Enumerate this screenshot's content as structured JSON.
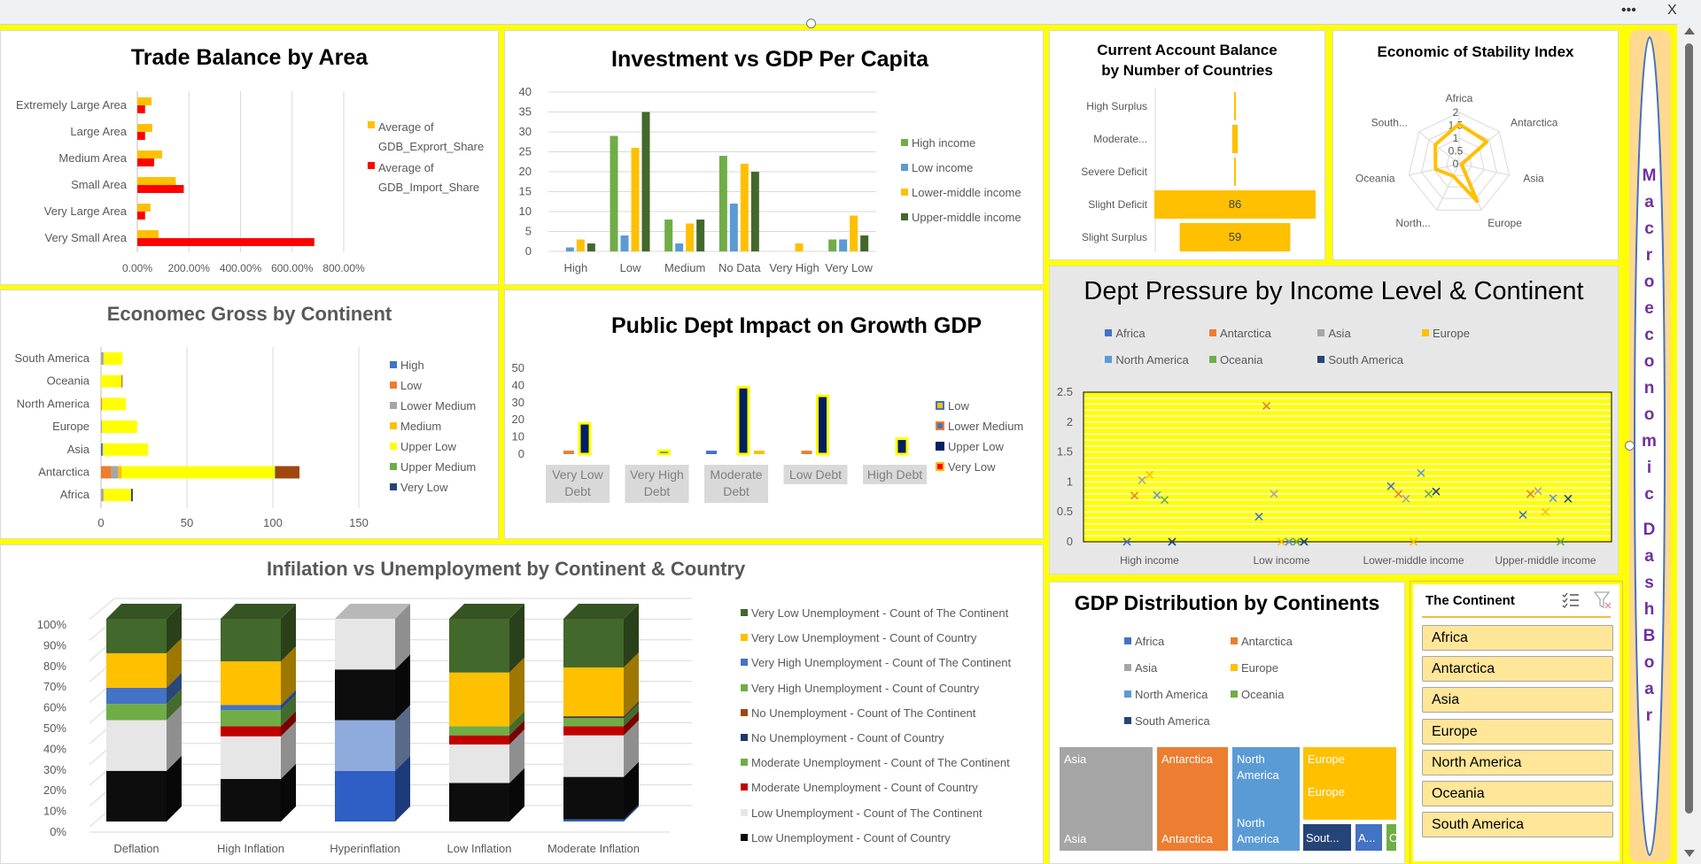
{
  "window": {
    "more_label": "•••",
    "close_label": "X"
  },
  "sidebar": {
    "title_line1": "Macroeconomic",
    "title_line2": "DashBoar"
  },
  "slicer": {
    "title": "The Continent",
    "items": [
      "Africa",
      "Antarctica",
      "Asia",
      "Europe",
      "North America",
      "Oceania",
      "South America"
    ]
  },
  "chart_data": [
    {
      "type": "bar",
      "orientation": "horizontal",
      "title": "Trade Balance by Area",
      "categories": [
        "Extremely Large Area",
        "Large Area",
        "Medium Area",
        "Small Area",
        "Very Large Area",
        "Very Small Area"
      ],
      "series": [
        {
          "name": "Average of GDB_Exprort_Share",
          "color": "#ffc000",
          "values": [
            55,
            58,
            96,
            149,
            51,
            82
          ]
        },
        {
          "name": "Average of GDB_Import_Share",
          "color": "#ff0000",
          "values": [
            30,
            30,
            65,
            180,
            30,
            686
          ]
        }
      ],
      "xlim": [
        0,
        800
      ],
      "xticks": [
        0,
        200,
        400,
        600,
        800
      ],
      "xtick_labels": [
        "0.00%",
        "200.00%",
        "400.00%",
        "600.00%",
        "800.00%"
      ],
      "legend": "right",
      "grid": true
    },
    {
      "type": "bar",
      "title": "Investment vs GDP Per Capita",
      "categories": [
        "High",
        "Low",
        "Medium",
        "No Data",
        "Very High",
        "Very Low"
      ],
      "series": [
        {
          "name": "High income",
          "color": "#70ad47",
          "values": [
            0,
            29,
            8,
            24,
            0,
            3
          ]
        },
        {
          "name": "Low income",
          "color": "#5b9bd5",
          "values": [
            1,
            4,
            2,
            12,
            0,
            3
          ]
        },
        {
          "name": "Lower-middle income",
          "color": "#ffc000",
          "values": [
            3,
            26,
            7,
            22,
            2,
            9
          ]
        },
        {
          "name": "Upper-middle income",
          "color": "#43682b",
          "values": [
            2,
            35,
            8,
            20,
            0,
            4
          ]
        }
      ],
      "ylim": [
        0,
        40
      ],
      "yticks": [
        0,
        5,
        10,
        15,
        20,
        25,
        30,
        35,
        40
      ],
      "ytick_labels": [
        "0",
        "5",
        "10",
        "15",
        "20",
        "25",
        "30",
        "35",
        "40"
      ],
      "legend": "right",
      "grid": true
    },
    {
      "type": "bar",
      "orientation": "horizontal",
      "style": "funnel",
      "title": "Current Account Balance by Number of Countries",
      "categories": [
        "High Surplus",
        "Moderate...",
        "Severe Deficit",
        "Slight Deficit",
        "Slight Surplus"
      ],
      "values": [
        1,
        3,
        1,
        86,
        59
      ],
      "data_labels": [
        "",
        "",
        "",
        "86",
        "59"
      ],
      "color": "#ffc000"
    },
    {
      "type": "radar",
      "title": "Economic of Stability Index",
      "categories": [
        "Africa",
        "Antarctica",
        "Asia",
        "Europe",
        "North...",
        "Oceania",
        "South..."
      ],
      "values": [
        1.55,
        1.37,
        0.1,
        1.62,
        0.53,
        0.94,
        1.19
      ],
      "rlim": [
        0,
        2
      ],
      "rticks": [
        0,
        0.5,
        1,
        1.5,
        2
      ],
      "rtick_labels": [
        "0",
        "0.5",
        "1",
        "1.5",
        "2"
      ],
      "color": "#ffc000"
    },
    {
      "type": "bar",
      "orientation": "horizontal",
      "stacked": true,
      "title": "Economec Gross by Continent",
      "categories": [
        "South America",
        "Oceania",
        "North America",
        "Europe",
        "Asia",
        "Antarctica",
        "Africa"
      ],
      "series": [
        {
          "name": "High",
          "color": "#4472c4",
          "values": [
            0,
            0,
            0,
            0,
            1,
            0,
            0
          ]
        },
        {
          "name": "Low",
          "color": "#ed7d31",
          "values": [
            0,
            0,
            0.5,
            0,
            0,
            6,
            0
          ]
        },
        {
          "name": "Lower Medium",
          "color": "#a5a5a5",
          "values": [
            1.5,
            0,
            0,
            0.5,
            0,
            4,
            1.5
          ]
        },
        {
          "name": "Medium",
          "color": "#ffc000",
          "values": [
            0,
            0,
            0,
            0,
            0,
            2,
            0
          ]
        },
        {
          "name": "Upper Low",
          "color": "#ffff00",
          "values": [
            11,
            12,
            14,
            20.5,
            26.5,
            89,
            16
          ]
        },
        {
          "name": "Upper Medium",
          "color": "#70ad47",
          "values": [
            0,
            0,
            0,
            0,
            0,
            0.5,
            0
          ]
        },
        {
          "name": "Very Low",
          "color": "#264478",
          "values": [
            0,
            0,
            0,
            0,
            0,
            0,
            1
          ]
        },
        {
          "name": "",
          "color": "#9e480e",
          "values": [
            0,
            0.5,
            0,
            0,
            0,
            14,
            0
          ],
          "legend": false
        }
      ],
      "xlim": [
        0,
        150
      ],
      "xticks": [
        0,
        50,
        100,
        150
      ],
      "xtick_labels": [
        "0",
        "50",
        "100",
        "150"
      ],
      "legend": "right",
      "grid": true
    },
    {
      "type": "bar",
      "title": "Public Dept Impact on Growth GDP",
      "categories": [
        "Very Low Debt",
        "Very High Debt",
        "Moderate Debt",
        "Low Debt",
        "High Debt"
      ],
      "series": [
        {
          "name": "Low",
          "color": "#4472c4",
          "marker_inner": "#ffc000",
          "values": [
            0,
            0,
            2,
            0,
            0
          ]
        },
        {
          "name": "Lower Medium",
          "color": "#ed7d31",
          "marker_inner": "#4472c4",
          "values": [
            2,
            0,
            0,
            2,
            0
          ]
        },
        {
          "name": "Upper Low",
          "color": "#002060",
          "border": "#ffff00",
          "marker_inner": "#002060",
          "values": [
            18,
            2,
            39,
            34,
            9
          ]
        },
        {
          "name": "Very Low",
          "color": "#ffc000",
          "marker_inner": "#ff0000",
          "values": [
            0,
            0,
            2,
            0,
            0
          ]
        }
      ],
      "ylim": [
        0,
        50
      ],
      "yticks": [
        0,
        10,
        20,
        30,
        40,
        50
      ],
      "ytick_labels": [
        "0",
        "10",
        "20",
        "30",
        "40",
        "50"
      ],
      "legend": "right"
    },
    {
      "type": "scatter",
      "title": "Dept Pressure by Income Level & Continent",
      "categories": [
        "High income",
        "Low income",
        "Lower-middle income",
        "Upper-middle income"
      ],
      "series": [
        {
          "name": "Africa",
          "color": "#4472c4",
          "values": [
            0,
            0.42,
            0.93,
            0.45
          ]
        },
        {
          "name": "Antarctica",
          "color": "#ed7d31",
          "values": [
            0.77,
            2.27,
            0.8,
            0.8
          ]
        },
        {
          "name": "Asia",
          "color": "#a5a5a5",
          "values": [
            1.03,
            0.8,
            0.72,
            0.85
          ]
        },
        {
          "name": "Europe",
          "color": "#ffc000",
          "values": [
            1.12,
            0,
            0,
            0.5
          ]
        },
        {
          "name": "North America",
          "color": "#5b9bd5",
          "values": [
            0.78,
            0,
            1.15,
            0.73
          ]
        },
        {
          "name": "Oceania",
          "color": "#70ad47",
          "values": [
            0.7,
            0,
            0.8,
            0
          ]
        },
        {
          "name": "South America",
          "color": "#264478",
          "values": [
            0,
            0,
            0.84,
            0.72
          ]
        }
      ],
      "ylim": [
        0,
        2.5
      ],
      "yticks": [
        0,
        0.5,
        1,
        1.5,
        2,
        2.5
      ],
      "ytick_labels": [
        "0",
        "0.5",
        "1",
        "1.5",
        "2",
        "2.5"
      ],
      "plot_background": "#ffff00",
      "legend": "top"
    },
    {
      "type": "bar",
      "stacked": "percent",
      "style": "3d-column",
      "title": "Infilation vs Unemployment by Continent & Country",
      "categories": [
        "Deflation",
        "High Inflation",
        "Hyperinflation",
        "Low Inflation",
        "Moderate Inflation"
      ],
      "series": [
        {
          "name": "",
          "color": "#2f5fc4",
          "values": [
            0,
            0,
            25,
            0,
            1
          ],
          "legend": false
        },
        {
          "name": "",
          "color": "#8faadc",
          "values": [
            0,
            0,
            25,
            0,
            0
          ],
          "legend": false
        },
        {
          "name": "Low Unemployment - Count of Country",
          "color": "#0d0d0d",
          "values": [
            25,
            21,
            25,
            19,
            21
          ]
        },
        {
          "name": "Low Unemployment - Count of The Continent",
          "color": "#e7e6e6",
          "values": [
            25,
            21,
            25,
            19,
            20.5
          ]
        },
        {
          "name": "Moderate Unemployment - Count of Country",
          "color": "#c00000",
          "values": [
            0,
            5,
            0,
            4.5,
            4.5
          ]
        },
        {
          "name": "Moderate Unemployment - Count of The Continent",
          "color": "#70ad47",
          "values": [
            0,
            0,
            0,
            4.5,
            4
          ]
        },
        {
          "name": "No Unemployment - Count of Country",
          "color": "#1f3864",
          "values": [
            0,
            0,
            0,
            0,
            0.5
          ]
        },
        {
          "name": "No Unemployment - Count of The Continent",
          "color": "#9e480e",
          "values": [
            0,
            0,
            0,
            0,
            0.5
          ]
        },
        {
          "name": "Very High Unemployment - Count of Country",
          "color": "#70ad47",
          "values": [
            8,
            8,
            0,
            0,
            0
          ]
        },
        {
          "name": "Very High Unemployment - Count of The Continent",
          "color": "#4472c4",
          "values": [
            8,
            2.5,
            0,
            0,
            0
          ]
        },
        {
          "name": "Very Low Unemployment - Count of Country",
          "color": "#ffc000",
          "values": [
            17,
            21.5,
            0,
            26.5,
            24
          ]
        },
        {
          "name": "Very Low Unemployment - Count of The Continent",
          "color": "#43682b",
          "values": [
            17,
            21,
            0,
            26.5,
            24
          ]
        }
      ],
      "ylim": [
        0,
        100
      ],
      "yticks": [
        0,
        10,
        20,
        30,
        40,
        50,
        60,
        70,
        80,
        90,
        100
      ],
      "ytick_labels": [
        "0%",
        "10%",
        "20%",
        "30%",
        "40%",
        "50%",
        "60%",
        "70%",
        "80%",
        "90%",
        "100%"
      ],
      "legend": "right"
    },
    {
      "type": "treemap",
      "title": "GDP Distribution by Continents",
      "legend_items": [
        {
          "name": "Africa",
          "color": "#4472c4"
        },
        {
          "name": "Antarctica",
          "color": "#ed7d31"
        },
        {
          "name": "Asia",
          "color": "#a5a5a5"
        },
        {
          "name": "Europe",
          "color": "#ffc000"
        },
        {
          "name": "North America",
          "color": "#5b9bd5"
        },
        {
          "name": "Oceania",
          "color": "#70ad47"
        },
        {
          "name": "South America",
          "color": "#264478"
        }
      ],
      "tiles": [
        {
          "label_top": "Asia",
          "label_bottom": "Asia",
          "color": "#a5a5a5",
          "value": 82
        },
        {
          "label_top": "Antarctica",
          "label_bottom": "Antarctica",
          "color": "#ed7d31",
          "value": 63
        },
        {
          "label_top": "North America",
          "label_bottom": "North America",
          "color": "#5b9bd5",
          "value": 59
        },
        {
          "label_top": "Europe",
          "label_bottom": "Europe",
          "color": "#ffc000",
          "value": 57
        },
        {
          "label_top": "Sout...",
          "label_bottom": "",
          "color": "#264478",
          "value": 12
        },
        {
          "label_top": "A...",
          "label_bottom": "",
          "color": "#4472c4",
          "value": 7
        },
        {
          "label_top": "O",
          "label_bottom": "",
          "color": "#70ad47",
          "value": 3
        }
      ]
    }
  ]
}
